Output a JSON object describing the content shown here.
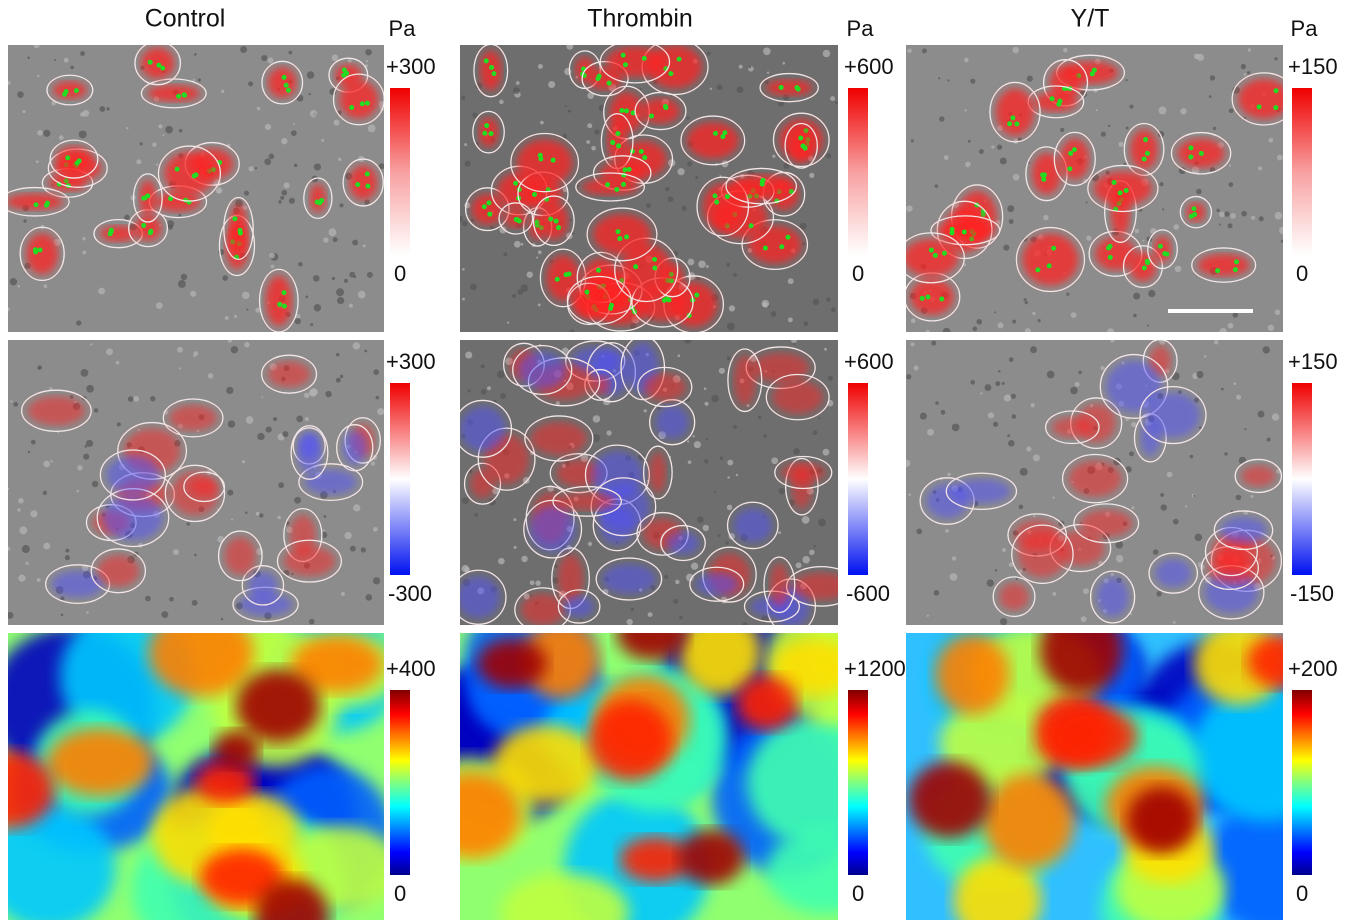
{
  "columns": [
    {
      "title": "Control",
      "unit": "Pa",
      "rows": [
        {
          "max": "+300",
          "min": "0"
        },
        {
          "max": "+300",
          "min": "-300"
        },
        {
          "max": "+400",
          "min": "0"
        }
      ]
    },
    {
      "title": "Thrombin",
      "unit": "Pa",
      "rows": [
        {
          "max": "+600",
          "min": "0"
        },
        {
          "max": "+600",
          "min": "-600"
        },
        {
          "max": "+1200",
          "min": "0"
        }
      ]
    },
    {
      "title": "Y/T",
      "unit": "Pa",
      "rows": [
        {
          "max": "+150",
          "min": "0"
        },
        {
          "max": "+150",
          "min": "-150"
        },
        {
          "max": "+200",
          "min": "0"
        }
      ]
    }
  ]
}
